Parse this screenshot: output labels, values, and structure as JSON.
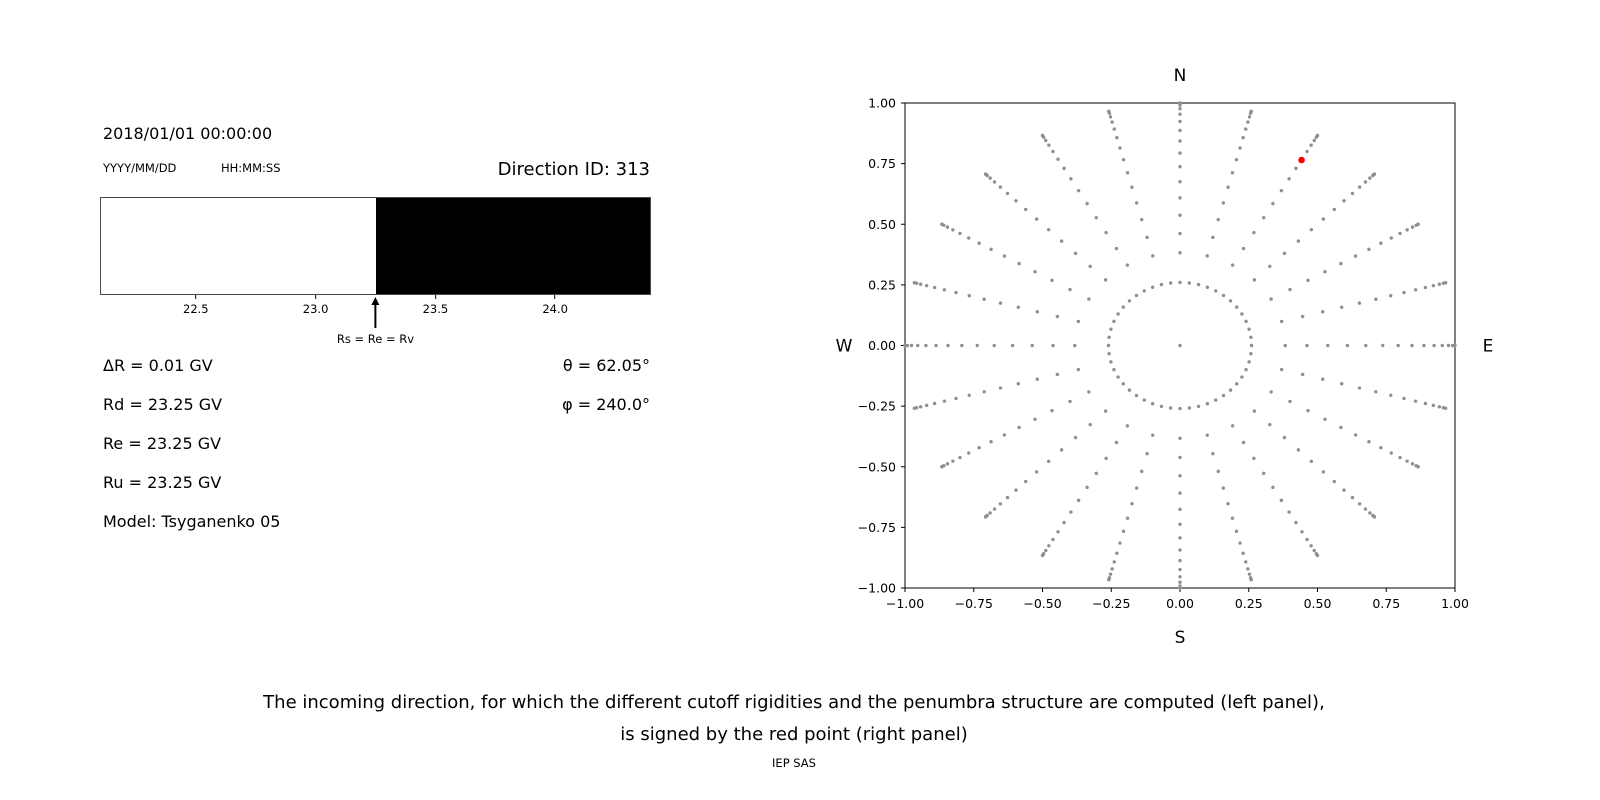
{
  "header": {
    "datetime": "2018/01/01 00:00:00",
    "date_format_label": "YYYY/MM/DD",
    "time_format_label": "HH:MM:SS",
    "direction_id": "Direction ID: 313"
  },
  "parameters": {
    "delta_R": "ΔR = 0.01 GV",
    "Rd": "Rd = 23.25 GV",
    "Re": "Re = 23.25 GV",
    "Ru": "Ru = 23.25 GV",
    "model": "Model: Tsyganenko 05",
    "theta": "θ = 62.05°",
    "phi": "φ = 240.0°"
  },
  "caption": {
    "line1": "The incoming direction, for which the different cutoff rigidities and the penumbra structure are computed (left panel),",
    "line2": "is signed by the red point (right panel)",
    "credit": "IEP SAS"
  },
  "chart_data": [
    {
      "type": "area",
      "name": "penumbra-structure",
      "x_unit": "GV",
      "x_range": [
        22.1,
        24.4
      ],
      "x_ticks": [
        22.5,
        23.0,
        23.5,
        24.0
      ],
      "x_tick_labels": [
        "22.5",
        "23.0",
        "23.5",
        "24.0"
      ],
      "regions": [
        {
          "from": 22.1,
          "to": 23.25,
          "fill": "#ffffff"
        },
        {
          "from": 23.25,
          "to": 24.4,
          "fill": "#000000"
        }
      ],
      "marker": {
        "x": 23.25,
        "label": "Rs = Re = Rv"
      }
    },
    {
      "type": "scatter",
      "name": "incoming-directions-sky-map",
      "xlim": [
        -1.0,
        1.0
      ],
      "ylim": [
        -1.0,
        1.0
      ],
      "x_tick_values": [
        -1.0,
        -0.75,
        -0.5,
        -0.25,
        0.0,
        0.25,
        0.5,
        0.75,
        1.0
      ],
      "x_tick_labels": [
        "−1.00",
        "−0.75",
        "−0.50",
        "−0.25",
        "0.00",
        "0.25",
        "0.50",
        "0.75",
        "1.00"
      ],
      "y_tick_values": [
        1.0,
        0.75,
        0.5,
        0.25,
        0.0,
        -0.25,
        -0.5,
        -0.75,
        -1.0
      ],
      "y_tick_labels": [
        "1.00",
        "0.75",
        "0.50",
        "0.25",
        "0.00",
        "−0.25",
        "−0.50",
        "−0.75",
        "−1.00"
      ],
      "compass_labels": {
        "top": "N",
        "bottom": "S",
        "left": "W",
        "right": "E"
      },
      "point_color": "#8f8f8f",
      "highlight_color": "#ff0000",
      "directions_grid": {
        "center_point": [
          0,
          0
        ],
        "inner_ring": {
          "radius": 0.26,
          "num_points": 48
        },
        "spokes": {
          "num_azimuths": 24,
          "azimuth_step_deg": 15,
          "zenith_angles_deg": [
            22.5,
            27.5,
            32.5,
            37.5,
            42.5,
            47.5,
            52.5,
            57.5,
            62.5,
            67.5,
            72.5,
            77.5,
            82.5,
            87.5,
            90
          ],
          "radius_rule": "sin(zenith)"
        }
      },
      "highlighted_point": {
        "x": 0.442,
        "y": 0.765,
        "theta_deg": 62.05,
        "phi_deg": 240.0
      }
    }
  ]
}
